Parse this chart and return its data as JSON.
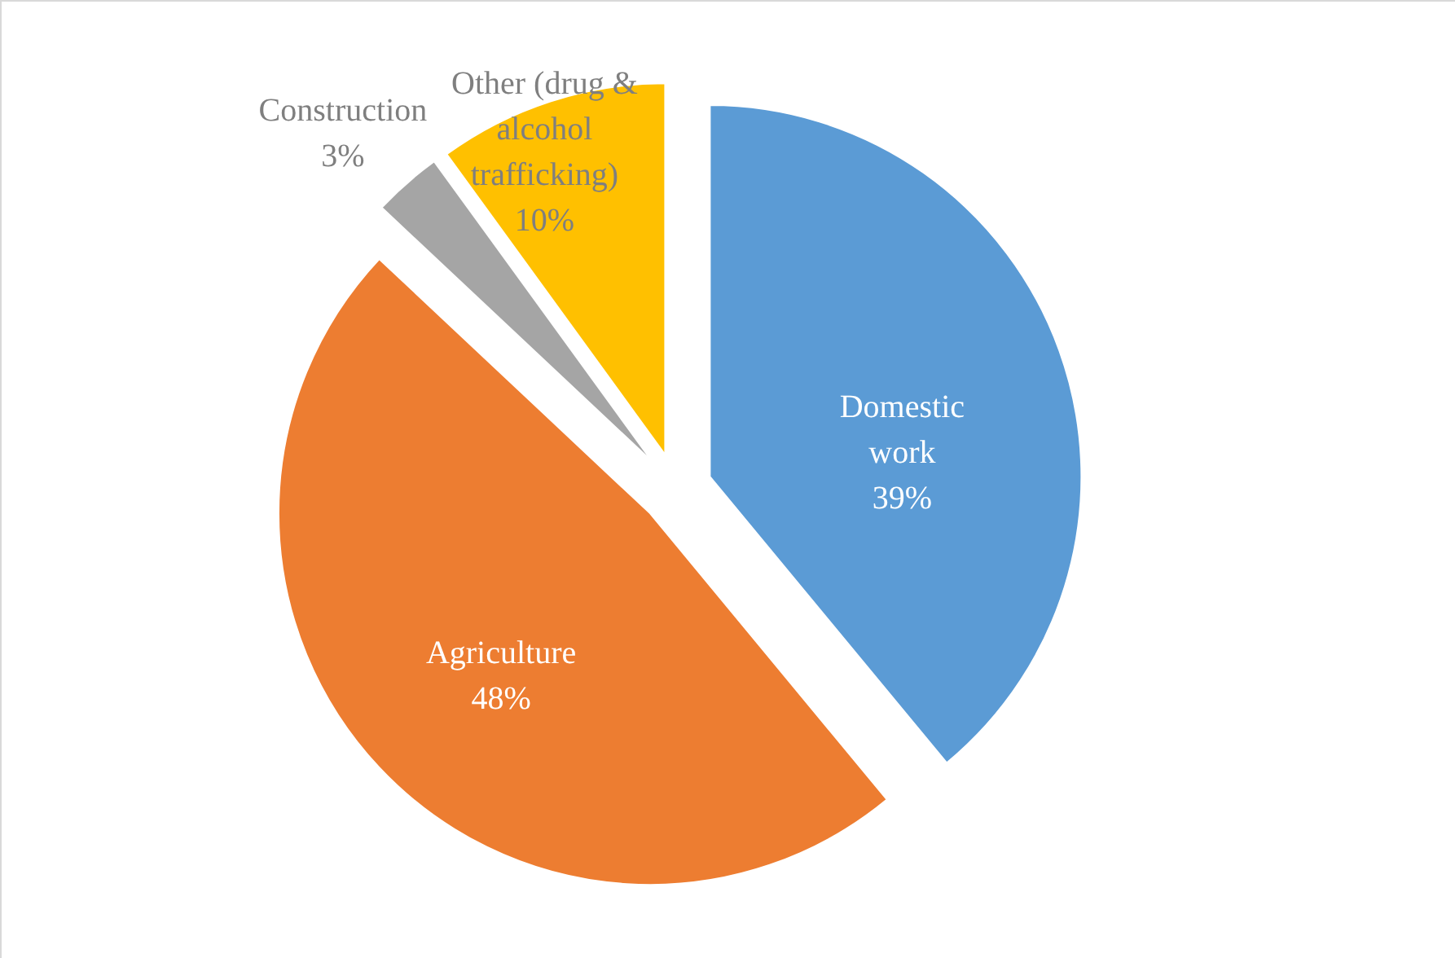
{
  "chart_data": {
    "type": "pie",
    "categories": [
      "Domestic work",
      "Agriculture",
      "Construction",
      "Other (drug & alcohol trafficking)"
    ],
    "values": [
      39,
      48,
      3,
      10
    ],
    "colors": [
      "#5b9bd5",
      "#ed7d31",
      "#a5a5a5",
      "#ffc000"
    ],
    "value_labels": [
      "39%",
      "48%",
      "3%",
      "10%"
    ]
  }
}
